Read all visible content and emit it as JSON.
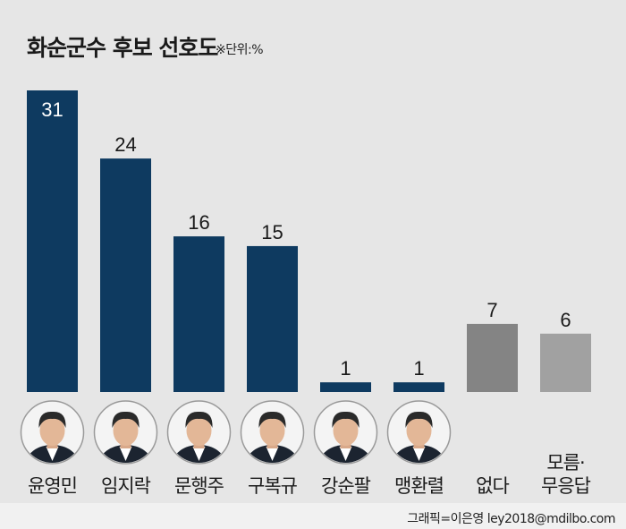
{
  "title": "화순군수 후보 선호도",
  "unit_note": "※단위:%",
  "credit": "그래픽=이은영 ley2018@mdilbo.com",
  "colors": {
    "candidate_bar": "#0e3a60",
    "none_bar": "#848484",
    "unknown_bar": "#a1a1a1",
    "background": "#e6e6e6"
  },
  "chart_data": {
    "type": "bar",
    "categories": [
      "윤영민",
      "임지락",
      "문행주",
      "구복규",
      "강순팔",
      "맹환렬",
      "없다",
      "모름·무응답"
    ],
    "category_lines": [
      [
        "윤영민"
      ],
      [
        "임지락"
      ],
      [
        "문행주"
      ],
      [
        "구복규"
      ],
      [
        "강순팔"
      ],
      [
        "맹환렬"
      ],
      [
        "없다"
      ],
      [
        "모름·",
        "무응답"
      ]
    ],
    "values": [
      31,
      24,
      16,
      15,
      1,
      1,
      7,
      6
    ],
    "value_labels": [
      "31",
      "24",
      "16",
      "15",
      "1",
      "1",
      "7",
      "6"
    ],
    "has_photo": [
      true,
      true,
      true,
      true,
      true,
      true,
      false,
      false
    ],
    "bar_colors": [
      "#0e3a60",
      "#0e3a60",
      "#0e3a60",
      "#0e3a60",
      "#0e3a60",
      "#0e3a60",
      "#848484",
      "#a1a1a1"
    ],
    "photo_icon": "candidate-portrait-icon",
    "ylim": [
      0,
      31
    ],
    "grid": false,
    "legend": "none",
    "xlabel": "",
    "ylabel": ""
  }
}
